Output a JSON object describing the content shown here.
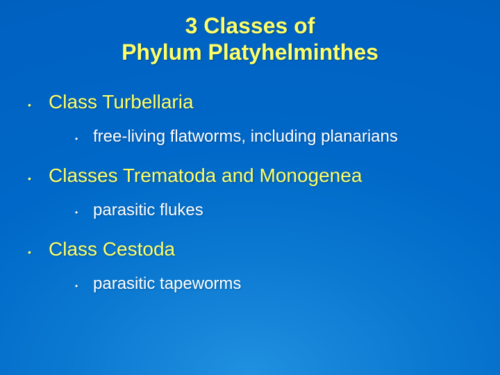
{
  "slide": {
    "title_line1": "3 Classes of",
    "title_line2": "Phylum Platyhelminthes",
    "items": [
      {
        "label": "Class Turbellaria",
        "children": [
          {
            "label": "free-living flatworms, including planarians"
          }
        ]
      },
      {
        "label": "Classes Trematoda and Monogenea",
        "children": [
          {
            "label": "parasitic flukes"
          }
        ]
      },
      {
        "label": "Class Cestoda",
        "children": [
          {
            "label": "parasitic tapeworms"
          }
        ]
      }
    ],
    "colors": {
      "title_color": "#ffff66",
      "level1_color": "#ffff66",
      "level2_color": "#ffffff",
      "background_top": "#0060c0",
      "background_bottom": "#2090e0"
    },
    "fonts": {
      "title_size_pt": 24,
      "level1_size_pt": 21,
      "level2_size_pt": 18,
      "family": "Arial"
    }
  }
}
